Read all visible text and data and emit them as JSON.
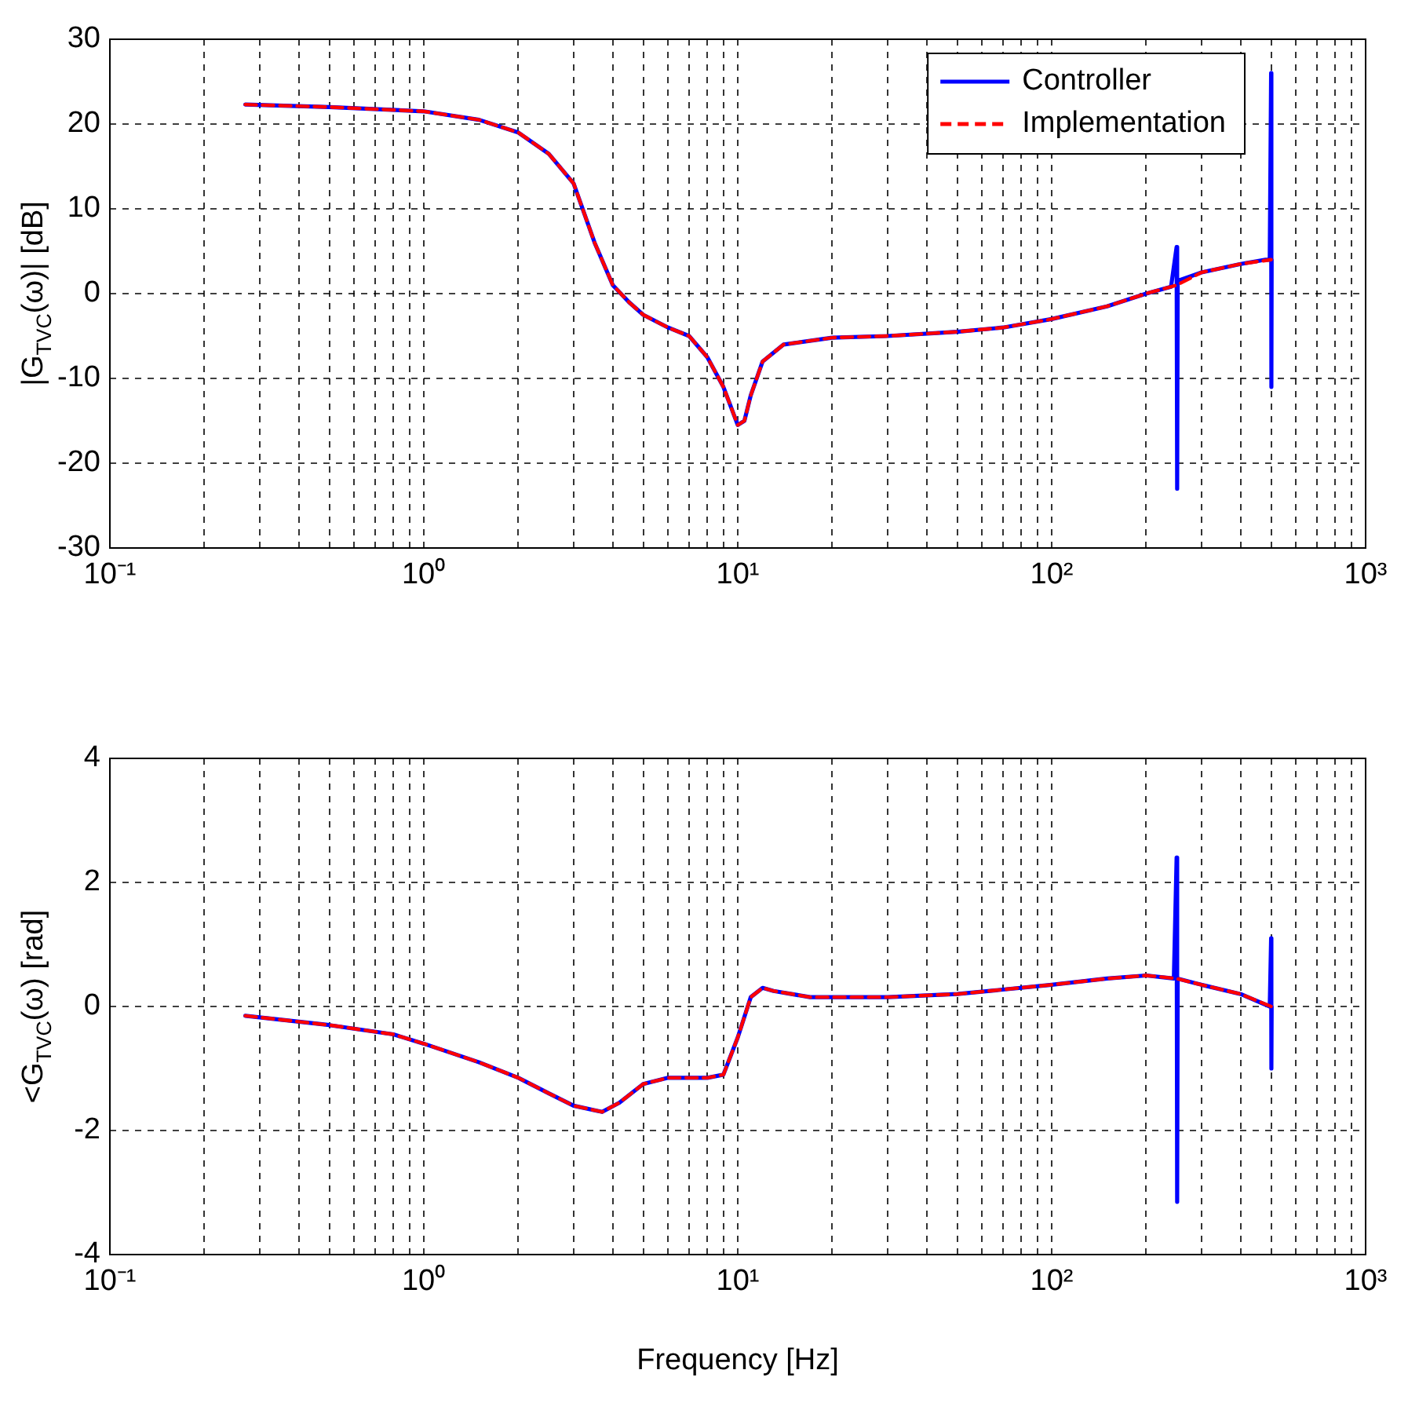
{
  "chart_data": [
    {
      "type": "line",
      "ylabel": "|G$_{TVC}$(ω)| [dB]",
      "log": "x",
      "grid": true,
      "legend": "top right",
      "marker": "none",
      "xlim": [
        0.1,
        1000
      ],
      "ylim": [
        -30,
        30
      ],
      "yticks": [
        -30,
        -20,
        -10,
        0,
        10,
        20,
        30
      ],
      "xticks": [
        {
          "value": 0.1,
          "label": "10⁻¹"
        },
        {
          "value": 0.2,
          "label": null
        },
        {
          "value": 0.3,
          "label": null
        },
        {
          "value": 0.4,
          "label": null
        },
        {
          "value": 0.5,
          "label": null
        },
        {
          "value": 0.6,
          "label": null
        },
        {
          "value": 0.7,
          "label": null
        },
        {
          "value": 0.8,
          "label": null
        },
        {
          "value": 0.9,
          "label": null
        },
        {
          "value": 1,
          "label": "10⁰"
        },
        {
          "value": 2,
          "label": null
        },
        {
          "value": 3,
          "label": null
        },
        {
          "value": 4,
          "label": null
        },
        {
          "value": 5,
          "label": null
        },
        {
          "value": 6,
          "label": null
        },
        {
          "value": 7,
          "label": null
        },
        {
          "value": 8,
          "label": null
        },
        {
          "value": 9,
          "label": null
        },
        {
          "value": 10,
          "label": "10¹"
        },
        {
          "value": 20,
          "label": null
        },
        {
          "value": 30,
          "label": null
        },
        {
          "value": 40,
          "label": null
        },
        {
          "value": 50,
          "label": null
        },
        {
          "value": 60,
          "label": null
        },
        {
          "value": 70,
          "label": null
        },
        {
          "value": 80,
          "label": null
        },
        {
          "value": 90,
          "label": null
        },
        {
          "value": 100,
          "label": "10²"
        },
        {
          "value": 200,
          "label": null
        },
        {
          "value": 300,
          "label": null
        },
        {
          "value": 400,
          "label": null
        },
        {
          "value": 500,
          "label": null
        },
        {
          "value": 600,
          "label": null
        },
        {
          "value": 700,
          "label": null
        },
        {
          "value": 800,
          "label": null
        },
        {
          "value": 900,
          "label": null
        },
        {
          "value": 1000,
          "label": "10³"
        }
      ],
      "series": [
        {
          "name": "Controller",
          "color": "#0000ff",
          "line_style": "solid",
          "x": [
            0.27,
            0.5,
            1,
            1.5,
            2,
            2.5,
            3,
            3.5,
            4,
            4.5,
            5,
            6,
            7,
            8,
            9,
            10,
            10.5,
            11,
            12,
            14,
            20,
            30,
            50,
            70,
            100,
            150,
            200,
            240,
            250,
            251,
            252,
            300,
            400,
            480,
            495,
            500,
            501,
            502
          ],
          "values": [
            22.3,
            22,
            21.5,
            20.5,
            19,
            16.5,
            13,
            6,
            1,
            -1,
            -2.5,
            -4,
            -5,
            -7.5,
            -11,
            -15.5,
            -15,
            -12,
            -8,
            -6,
            -5.2,
            -5,
            -4.5,
            -4,
            -3,
            -1.5,
            0,
            0.8,
            5.5,
            -23,
            1.5,
            2.5,
            3.5,
            4,
            4,
            26,
            -11,
            4
          ]
        },
        {
          "name": "Implementation",
          "color": "#ff0000",
          "line_style": "dashed",
          "x": [
            0.27,
            0.5,
            1,
            1.5,
            2,
            2.5,
            3,
            3.5,
            4,
            4.5,
            5,
            6,
            7,
            8,
            9,
            10,
            10.5,
            11,
            12,
            14,
            20,
            30,
            50,
            70,
            100,
            150,
            200,
            250,
            300,
            400,
            500
          ],
          "values": [
            22.3,
            22,
            21.5,
            20.5,
            19,
            16.5,
            13,
            6,
            1,
            -1,
            -2.5,
            -4,
            -5,
            -7.5,
            -11,
            -15.5,
            -15,
            -12,
            -8,
            -6,
            -5.2,
            -5,
            -4.5,
            -4,
            -3,
            -1.5,
            0,
            1,
            2.5,
            3.5,
            4
          ]
        }
      ]
    },
    {
      "type": "line",
      "ylabel": "<G$_{TVC}$(ω) [rad]",
      "xlabel": "Frequency [Hz]",
      "log": "x",
      "grid": true,
      "marker": "none",
      "xlim": [
        0.1,
        1000
      ],
      "ylim": [
        -4,
        4
      ],
      "yticks": [
        -4,
        -2,
        0,
        2,
        4
      ],
      "xticks": [
        {
          "value": 0.1,
          "label": "10⁻¹"
        },
        {
          "value": 0.2,
          "label": null
        },
        {
          "value": 0.3,
          "label": null
        },
        {
          "value": 0.4,
          "label": null
        },
        {
          "value": 0.5,
          "label": null
        },
        {
          "value": 0.6,
          "label": null
        },
        {
          "value": 0.7,
          "label": null
        },
        {
          "value": 0.8,
          "label": null
        },
        {
          "value": 0.9,
          "label": null
        },
        {
          "value": 1,
          "label": "10⁰"
        },
        {
          "value": 2,
          "label": null
        },
        {
          "value": 3,
          "label": null
        },
        {
          "value": 4,
          "label": null
        },
        {
          "value": 5,
          "label": null
        },
        {
          "value": 6,
          "label": null
        },
        {
          "value": 7,
          "label": null
        },
        {
          "value": 8,
          "label": null
        },
        {
          "value": 9,
          "label": null
        },
        {
          "value": 10,
          "label": "10¹"
        },
        {
          "value": 20,
          "label": null
        },
        {
          "value": 30,
          "label": null
        },
        {
          "value": 40,
          "label": null
        },
        {
          "value": 50,
          "label": null
        },
        {
          "value": 60,
          "label": null
        },
        {
          "value": 70,
          "label": null
        },
        {
          "value": 80,
          "label": null
        },
        {
          "value": 90,
          "label": null
        },
        {
          "value": 100,
          "label": "10²"
        },
        {
          "value": 200,
          "label": null
        },
        {
          "value": 300,
          "label": null
        },
        {
          "value": 400,
          "label": null
        },
        {
          "value": 500,
          "label": null
        },
        {
          "value": 600,
          "label": null
        },
        {
          "value": 700,
          "label": null
        },
        {
          "value": 800,
          "label": null
        },
        {
          "value": 900,
          "label": null
        },
        {
          "value": 1000,
          "label": "10³"
        }
      ],
      "series": [
        {
          "color": "#0000ff",
          "line_style": "solid",
          "x": [
            0.27,
            0.5,
            0.8,
            1,
            1.5,
            2,
            2.5,
            3,
            3.7,
            4.2,
            5,
            6,
            8,
            9,
            10,
            11,
            12,
            13,
            17,
            30,
            50,
            100,
            150,
            200,
            245,
            250,
            251,
            252,
            300,
            400,
            495,
            500,
            501,
            502
          ],
          "values": [
            -0.15,
            -0.3,
            -0.45,
            -0.6,
            -0.9,
            -1.15,
            -1.4,
            -1.6,
            -1.7,
            -1.55,
            -1.25,
            -1.15,
            -1.15,
            -1.1,
            -0.5,
            0.15,
            0.3,
            0.25,
            0.15,
            0.15,
            0.2,
            0.35,
            0.45,
            0.5,
            0.45,
            2.4,
            -3.15,
            0.45,
            0.35,
            0.2,
            0,
            1.1,
            -1,
            0
          ]
        },
        {
          "color": "#ff0000",
          "line_style": "dashed",
          "x": [
            0.27,
            0.5,
            0.8,
            1,
            1.5,
            2,
            2.5,
            3,
            3.7,
            4.2,
            5,
            6,
            8,
            9,
            10,
            11,
            12,
            13,
            17,
            30,
            50,
            100,
            150,
            200,
            250,
            300,
            400,
            500
          ],
          "values": [
            -0.15,
            -0.3,
            -0.45,
            -0.6,
            -0.9,
            -1.15,
            -1.4,
            -1.6,
            -1.7,
            -1.55,
            -1.25,
            -1.15,
            -1.15,
            -1.1,
            -0.5,
            0.15,
            0.3,
            0.25,
            0.15,
            0.15,
            0.2,
            0.35,
            0.45,
            0.5,
            0.45,
            0.35,
            0.2,
            0
          ]
        }
      ]
    }
  ]
}
